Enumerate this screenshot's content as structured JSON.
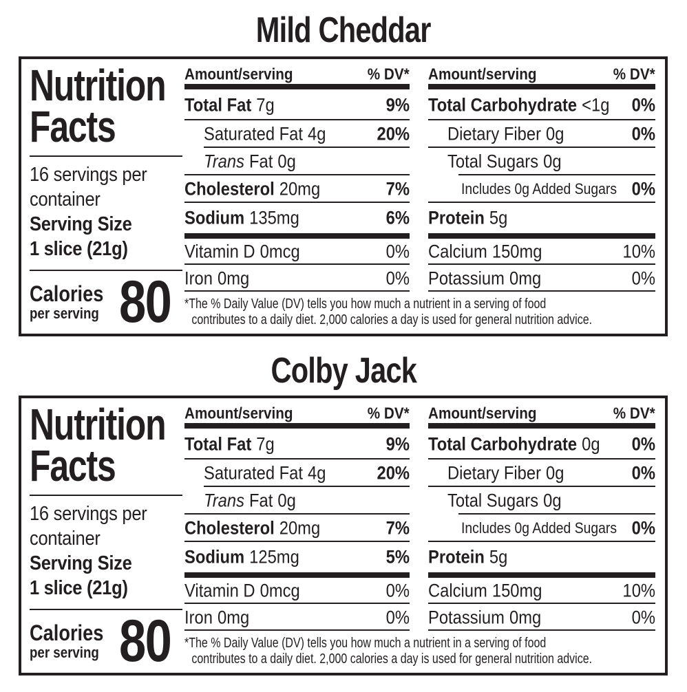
{
  "ink": "#231f20",
  "labels": [
    {
      "title": "Mild Cheddar",
      "panel": {
        "brand_line1": "Nutrition",
        "brand_line2": "Facts",
        "servings_line1": "16 servings per",
        "servings_line2": "container",
        "serving_size_label": "Serving Size",
        "serving_size_value": "1 slice (21g)",
        "calories_label": "Calories",
        "calories_sublabel": "per serving",
        "calories_value": "80"
      },
      "nutrient_table_left": {
        "header_amount": "Amount/serving",
        "header_dv": "% DV*",
        "rows": [
          {
            "name": "Total Fat",
            "amount": "7g",
            "dv": "9%"
          },
          {
            "name": "Saturated Fat",
            "amount": "4g",
            "dv": "20%"
          },
          {
            "name_italic": "Trans",
            "name": "Fat",
            "amount": "0g",
            "dv": ""
          },
          {
            "name": "Cholesterol",
            "amount": "20mg",
            "dv": "7%"
          },
          {
            "name": "Sodium",
            "amount": "135mg",
            "dv": "6%"
          },
          {
            "name": "Vitamin D",
            "amount": "0mcg",
            "dv": "0%"
          },
          {
            "name": "Iron",
            "amount": "0mg",
            "dv": "0%"
          }
        ]
      },
      "nutrient_table_right": {
        "header_amount": "Amount/serving",
        "header_dv": "% DV*",
        "rows": [
          {
            "name": "Total Carbohydrate",
            "amount": "<1g",
            "dv": "0%"
          },
          {
            "name": "Dietary Fiber",
            "amount": "0g",
            "dv": "0%"
          },
          {
            "name": "Total Sugars",
            "amount": "0g",
            "dv": ""
          },
          {
            "name": "Includes 0g Added Sugars",
            "amount": "",
            "dv": "0%"
          },
          {
            "name": "Protein",
            "amount": "5g",
            "dv": ""
          },
          {
            "name": "Calcium",
            "amount": "150mg",
            "dv": "10%"
          },
          {
            "name": "Potassium",
            "amount": "0mg",
            "dv": "0%"
          }
        ]
      },
      "footnote_line1": "*The % Daily Value (DV) tells you how much a nutrient in a serving of food",
      "footnote_line2": "contributes to a daily diet. 2,000 calories a day is used for general nutrition advice."
    },
    {
      "title": "Colby Jack",
      "panel": {
        "brand_line1": "Nutrition",
        "brand_line2": "Facts",
        "servings_line1": "16 servings per",
        "servings_line2": "container",
        "serving_size_label": "Serving Size",
        "serving_size_value": "1 slice (21g)",
        "calories_label": "Calories",
        "calories_sublabel": "per serving",
        "calories_value": "80"
      },
      "nutrient_table_left": {
        "header_amount": "Amount/serving",
        "header_dv": "% DV*",
        "rows": [
          {
            "name": "Total Fat",
            "amount": "7g",
            "dv": "9%"
          },
          {
            "name": "Saturated Fat",
            "amount": "4g",
            "dv": "20%"
          },
          {
            "name_italic": "Trans",
            "name": "Fat",
            "amount": "0g",
            "dv": ""
          },
          {
            "name": "Cholesterol",
            "amount": "20mg",
            "dv": "7%"
          },
          {
            "name": "Sodium",
            "amount": "125mg",
            "dv": "5%"
          },
          {
            "name": "Vitamin D",
            "amount": "0mcg",
            "dv": "0%"
          },
          {
            "name": "Iron",
            "amount": "0mg",
            "dv": "0%"
          }
        ]
      },
      "nutrient_table_right": {
        "header_amount": "Amount/serving",
        "header_dv": "% DV*",
        "rows": [
          {
            "name": "Total Carbohydrate",
            "amount": "0g",
            "dv": "0%"
          },
          {
            "name": "Dietary Fiber",
            "amount": "0g",
            "dv": "0%"
          },
          {
            "name": "Total Sugars",
            "amount": "0g",
            "dv": ""
          },
          {
            "name": "Includes 0g Added Sugars",
            "amount": "",
            "dv": "0%"
          },
          {
            "name": "Protein",
            "amount": "5g",
            "dv": ""
          },
          {
            "name": "Calcium",
            "amount": "150mg",
            "dv": "10%"
          },
          {
            "name": "Potassium",
            "amount": "0mg",
            "dv": "0%"
          }
        ]
      },
      "footnote_line1": "*The % Daily Value (DV) tells you how much a nutrient in a serving of food",
      "footnote_line2": "contributes to a daily diet. 2,000 calories a day is used for general nutrition advice."
    }
  ]
}
